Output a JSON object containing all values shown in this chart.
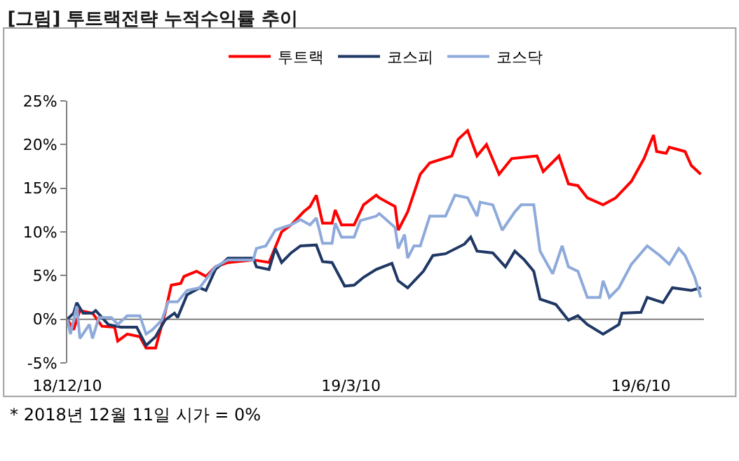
{
  "chart_data": {
    "type": "line",
    "title": "[그림] 투트랙전략 누적수익률 추이",
    "annotations": [
      "* 2018년 12월 11일 시가 = 0%"
    ],
    "xlim": [
      "2018-12-10",
      "2019-06-30"
    ],
    "xticks": [
      {
        "value": "2018-12-10",
        "label": "18/12/10"
      },
      {
        "value": "2019-03-10",
        "label": "19/3/10"
      },
      {
        "value": "2019-06-10",
        "label": "19/6/10"
      }
    ],
    "ylim": [
      -5,
      25
    ],
    "yticks": [
      {
        "value": -5,
        "label": "-5%"
      },
      {
        "value": 0,
        "label": "0%"
      },
      {
        "value": 5,
        "label": "5%"
      },
      {
        "value": 10,
        "label": "10%"
      },
      {
        "value": 15,
        "label": "15%"
      },
      {
        "value": 20,
        "label": "20%"
      },
      {
        "value": 25,
        "label": "25%"
      }
    ],
    "grid": false,
    "legend": "top",
    "ref_lines": [
      {
        "axis": "y",
        "value": 0,
        "color": "#808080",
        "line_style": "solid"
      }
    ],
    "marker": "none",
    "line_style": "solid",
    "series": [
      {
        "name": "투트랙",
        "color": "#ff0000",
        "x": [
          "2018-12-10",
          "2018-12-12",
          "2018-12-14",
          "2018-12-18",
          "2018-12-21",
          "2018-12-25",
          "2018-12-26",
          "2018-12-29",
          "2019-01-02",
          "2019-01-04",
          "2019-01-07",
          "2019-01-10",
          "2019-01-12",
          "2019-01-15",
          "2019-01-16",
          "2019-01-20",
          "2019-01-23",
          "2019-01-26",
          "2019-01-30",
          "2019-02-07",
          "2019-02-12",
          "2019-02-16",
          "2019-02-19",
          "2019-02-23",
          "2019-02-25",
          "2019-02-27",
          "2019-03-01",
          "2019-03-04",
          "2019-03-05",
          "2019-03-07",
          "2019-03-11",
          "2019-03-14",
          "2019-03-18",
          "2019-03-19",
          "2019-03-24",
          "2019-03-25",
          "2019-03-28",
          "2019-04-01",
          "2019-04-04",
          "2019-04-11",
          "2019-04-13",
          "2019-04-16",
          "2019-04-19",
          "2019-04-22",
          "2019-04-26",
          "2019-04-30",
          "2019-05-08",
          "2019-05-10",
          "2019-05-15",
          "2019-05-18",
          "2019-05-21",
          "2019-05-24",
          "2019-05-29",
          "2019-06-02",
          "2019-06-07",
          "2019-06-11",
          "2019-06-14",
          "2019-06-15",
          "2019-06-18",
          "2019-06-19",
          "2019-06-24",
          "2019-06-26",
          "2019-06-29"
        ],
        "values": [
          0,
          -1.2,
          1.0,
          0.7,
          -0.8,
          -0.9,
          -2.5,
          -1.7,
          -2.0,
          -3.3,
          -3.3,
          0.7,
          3.9,
          4.1,
          4.9,
          5.5,
          4.9,
          6.0,
          6.5,
          6.8,
          6.5,
          10.0,
          10.8,
          12.3,
          12.9,
          14.2,
          11.0,
          11.0,
          12.5,
          10.8,
          10.8,
          13.1,
          14.2,
          13.9,
          12.9,
          10.2,
          12.3,
          16.6,
          17.9,
          18.7,
          20.6,
          21.6,
          18.7,
          20.0,
          16.6,
          18.4,
          18.7,
          16.9,
          18.7,
          15.5,
          15.3,
          13.9,
          13.1,
          13.9,
          15.8,
          18.4,
          21.1,
          19.2,
          19.0,
          19.7,
          19.2,
          17.6,
          16.6
        ]
      },
      {
        "name": "코스피",
        "color": "#1f3864",
        "x": [
          "2018-12-10",
          "2018-12-12",
          "2018-12-13",
          "2018-12-15",
          "2018-12-18",
          "2018-12-19",
          "2018-12-23",
          "2018-12-27",
          "2019-01-01",
          "2019-01-04",
          "2019-01-07",
          "2019-01-10",
          "2019-01-13",
          "2019-01-14",
          "2019-01-17",
          "2019-01-21",
          "2019-01-23",
          "2019-01-26",
          "2019-01-30",
          "2019-02-07",
          "2019-02-08",
          "2019-02-12",
          "2019-02-14",
          "2019-02-16",
          "2019-02-19",
          "2019-02-22",
          "2019-02-27",
          "2019-03-01",
          "2019-03-04",
          "2019-03-08",
          "2019-03-11",
          "2019-03-14",
          "2019-03-18",
          "2019-03-23",
          "2019-03-25",
          "2019-03-28",
          "2019-04-02",
          "2019-04-05",
          "2019-04-09",
          "2019-04-15",
          "2019-04-17",
          "2019-04-19",
          "2019-04-24",
          "2019-04-28",
          "2019-05-01",
          "2019-05-04",
          "2019-05-07",
          "2019-05-09",
          "2019-05-14",
          "2019-05-18",
          "2019-05-21",
          "2019-05-24",
          "2019-05-29",
          "2019-06-03",
          "2019-06-04",
          "2019-06-10",
          "2019-06-12",
          "2019-06-17",
          "2019-06-20",
          "2019-06-26",
          "2019-06-29"
        ],
        "values": [
          0,
          0.7,
          1.9,
          0.7,
          0.7,
          1.0,
          -0.6,
          -0.9,
          -0.9,
          -3.0,
          -2.0,
          -0.1,
          0.7,
          0.2,
          2.8,
          3.6,
          3.3,
          5.7,
          7.0,
          7.0,
          6.0,
          5.7,
          8.1,
          6.5,
          7.6,
          8.4,
          8.5,
          6.6,
          6.5,
          3.8,
          3.9,
          4.8,
          5.7,
          6.4,
          4.4,
          3.6,
          5.5,
          7.3,
          7.5,
          8.6,
          9.4,
          7.8,
          7.6,
          6.0,
          7.8,
          6.8,
          5.5,
          2.3,
          1.7,
          -0.1,
          0.4,
          -0.6,
          -1.7,
          -0.6,
          0.7,
          0.8,
          2.5,
          1.9,
          3.6,
          3.3,
          3.6
        ]
      },
      {
        "name": "코스닥",
        "color": "#8eaadb",
        "x": [
          "2018-12-10",
          "2018-12-11",
          "2018-12-13",
          "2018-12-14",
          "2018-12-17",
          "2018-12-18",
          "2018-12-20",
          "2018-12-24",
          "2018-12-26",
          "2018-12-29",
          "2019-01-02",
          "2019-01-04",
          "2019-01-06",
          "2019-01-09",
          "2019-01-11",
          "2019-01-14",
          "2019-01-17",
          "2019-01-21",
          "2019-01-26",
          "2019-01-30",
          "2019-02-07",
          "2019-02-08",
          "2019-02-11",
          "2019-02-14",
          "2019-02-19",
          "2019-02-22",
          "2019-02-25",
          "2019-02-27",
          "2019-02-28",
          "2019-03-01",
          "2019-03-04",
          "2019-03-05",
          "2019-03-07",
          "2019-03-11",
          "2019-03-13",
          "2019-03-18",
          "2019-03-19",
          "2019-03-24",
          "2019-03-25",
          "2019-03-27",
          "2019-03-28",
          "2019-03-30",
          "2019-04-01",
          "2019-04-04",
          "2019-04-09",
          "2019-04-12",
          "2019-04-16",
          "2019-04-19",
          "2019-04-20",
          "2019-04-24",
          "2019-04-27",
          "2019-05-01",
          "2019-05-03",
          "2019-05-07",
          "2019-05-09",
          "2019-05-13",
          "2019-05-16",
          "2019-05-18",
          "2019-05-21",
          "2019-05-24",
          "2019-05-28",
          "2019-05-29",
          "2019-05-31",
          "2019-06-03",
          "2019-06-07",
          "2019-06-12",
          "2019-06-16",
          "2019-06-19",
          "2019-06-22",
          "2019-06-24",
          "2019-06-27",
          "2019-06-29"
        ],
        "values": [
          0,
          -1.7,
          1.5,
          -2.2,
          -0.6,
          -2.2,
          0.2,
          0.2,
          -0.6,
          0.4,
          0.4,
          -1.7,
          -1.2,
          -0.1,
          2.0,
          2.0,
          3.3,
          3.6,
          6.0,
          6.8,
          6.8,
          8.1,
          8.4,
          10.2,
          10.8,
          11.4,
          10.8,
          11.6,
          10.2,
          8.7,
          8.7,
          11.0,
          9.4,
          9.4,
          11.3,
          11.8,
          12.1,
          10.5,
          8.1,
          9.7,
          7.0,
          8.4,
          8.4,
          11.8,
          11.8,
          14.2,
          13.9,
          11.8,
          13.4,
          13.1,
          10.2,
          12.3,
          13.1,
          13.1,
          7.8,
          5.2,
          8.4,
          6.0,
          5.5,
          2.5,
          2.5,
          4.4,
          2.5,
          3.6,
          6.3,
          8.4,
          7.3,
          6.3,
          8.1,
          7.3,
          4.9,
          2.5
        ]
      }
    ]
  }
}
